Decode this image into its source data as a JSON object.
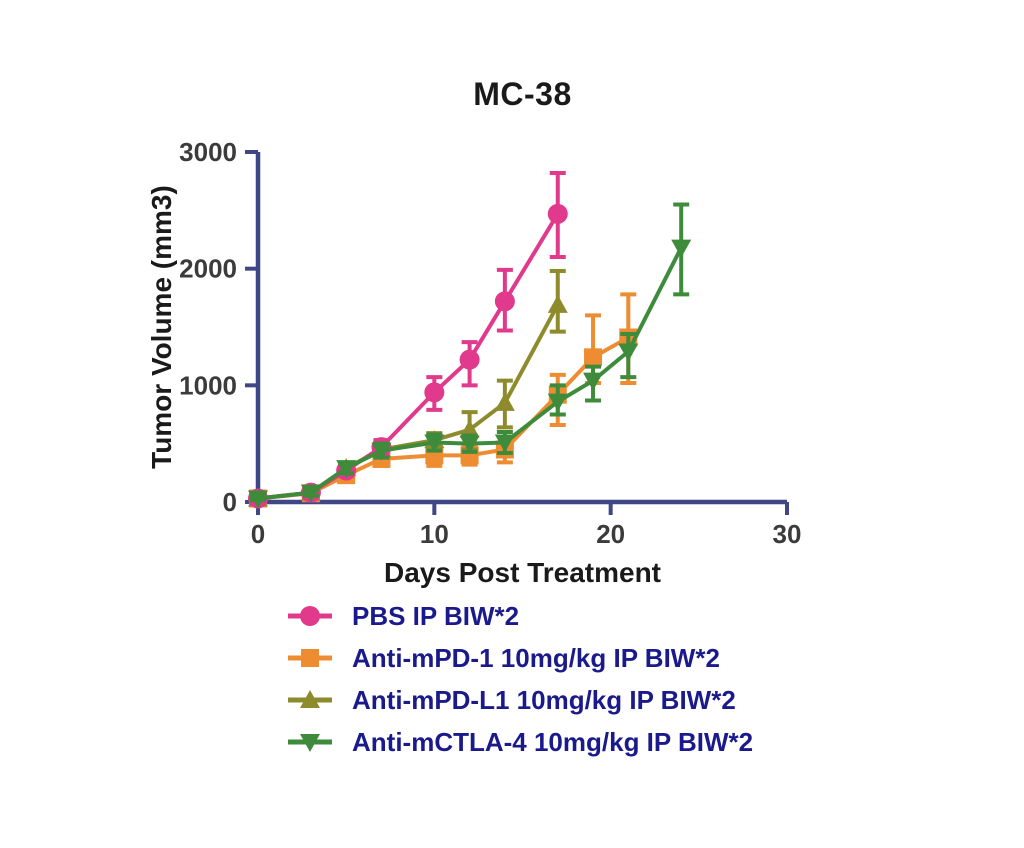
{
  "chart_data": {
    "type": "line",
    "title": "MC-38",
    "xlabel": "Days Post Treatment",
    "ylabel": "Tumor Volume (mm3)",
    "xlim": [
      0,
      30
    ],
    "ylim": [
      0,
      3000
    ],
    "x_ticks": [
      0,
      10,
      20,
      30
    ],
    "y_ticks": [
      0,
      1000,
      2000,
      3000
    ],
    "grid": false,
    "legend_position": "below-left",
    "axis_color": "#3F4787",
    "tick_label_color": "#3B3B3B",
    "legend_text_color": "#1A1A8C",
    "error_bars": "sd",
    "series": [
      {
        "name": "PBS IP BIW*2",
        "color": "#E1398B",
        "marker": "circle",
        "x": [
          0,
          3,
          5,
          7,
          10,
          12,
          14,
          17
        ],
        "y": [
          30,
          80,
          270,
          470,
          940,
          1220,
          1720,
          2470
        ],
        "err_minus": [
          15,
          25,
          45,
          60,
          150,
          220,
          250,
          370
        ],
        "err_plus": [
          15,
          25,
          45,
          60,
          130,
          150,
          270,
          350
        ]
      },
      {
        "name": "Anti-mPD-1 10mg/kg IP BIW*2",
        "color": "#EE8C31",
        "marker": "square",
        "x": [
          0,
          3,
          5,
          7,
          10,
          12,
          14,
          17,
          19,
          21
        ],
        "y": [
          30,
          75,
          230,
          370,
          400,
          400,
          450,
          920,
          1240,
          1410
        ],
        "err_minus": [
          15,
          25,
          45,
          60,
          90,
          80,
          110,
          260,
          220,
          390
        ],
        "err_plus": [
          15,
          25,
          45,
          60,
          90,
          80,
          110,
          170,
          360,
          370
        ]
      },
      {
        "name": "Anti-mPD-L1 10mg/kg IP BIW*2",
        "color": "#8E8B2D",
        "marker": "triangle-up",
        "x": [
          0,
          3,
          5,
          7,
          10,
          12,
          14,
          17
        ],
        "y": [
          30,
          80,
          290,
          450,
          530,
          620,
          850,
          1690
        ],
        "err_minus": [
          15,
          25,
          45,
          60,
          60,
          170,
          210,
          230
        ],
        "err_plus": [
          15,
          25,
          45,
          60,
          60,
          150,
          190,
          290
        ]
      },
      {
        "name": "Anti-mCTLA-4 10mg/kg IP BIW*2",
        "color": "#3E8B3B",
        "marker": "triangle-down",
        "x": [
          0,
          3,
          5,
          7,
          10,
          12,
          14,
          17,
          19,
          21,
          24
        ],
        "y": [
          30,
          80,
          290,
          440,
          510,
          500,
          510,
          860,
          1040,
          1290,
          2180
        ],
        "err_minus": [
          15,
          25,
          45,
          60,
          70,
          70,
          90,
          110,
          170,
          220,
          400
        ],
        "err_plus": [
          15,
          25,
          45,
          60,
          70,
          70,
          90,
          140,
          120,
          150,
          370
        ]
      }
    ]
  }
}
